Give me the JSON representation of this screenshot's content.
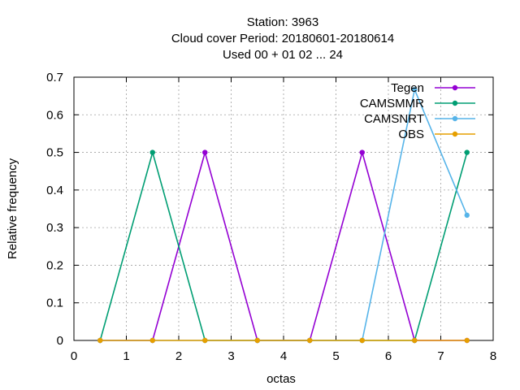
{
  "chart_data": {
    "type": "line",
    "title_lines": [
      "Station:     3963",
      "Cloud cover  Period: 20180601-20180614",
      "Used  00 + 01 02 ... 24"
    ],
    "xlabel": "octas",
    "ylabel": "Relative frequency",
    "xlim": [
      0,
      8
    ],
    "ylim": [
      0,
      0.7
    ],
    "x_ticks": [
      "0",
      "1",
      "2",
      "3",
      "4",
      "5",
      "6",
      "7",
      "8"
    ],
    "y_ticks": [
      "0",
      "0.1",
      "0.2",
      "0.3",
      "0.4",
      "0.5",
      "0.6",
      "0.7"
    ],
    "grid": true,
    "legend_position": "top-right",
    "x": [
      0.5,
      1.5,
      2.5,
      3.5,
      4.5,
      5.5,
      6.5,
      7.5
    ],
    "series": [
      {
        "name": "Tegen",
        "color": "#9400d3",
        "values": [
          0,
          0,
          0.5,
          0,
          0,
          0.5,
          0,
          0
        ]
      },
      {
        "name": "CAMSMMR",
        "color": "#009e73",
        "values": [
          0,
          0.5,
          0,
          0,
          0,
          0,
          0,
          0.5
        ]
      },
      {
        "name": "CAMSNRT",
        "color": "#56b4e9",
        "values": [
          0,
          0,
          0,
          0,
          0,
          0,
          0.667,
          0.333
        ]
      },
      {
        "name": "OBS",
        "color": "#e69f00",
        "values": [
          0,
          0,
          0,
          0,
          0,
          0,
          0,
          0
        ]
      }
    ]
  }
}
